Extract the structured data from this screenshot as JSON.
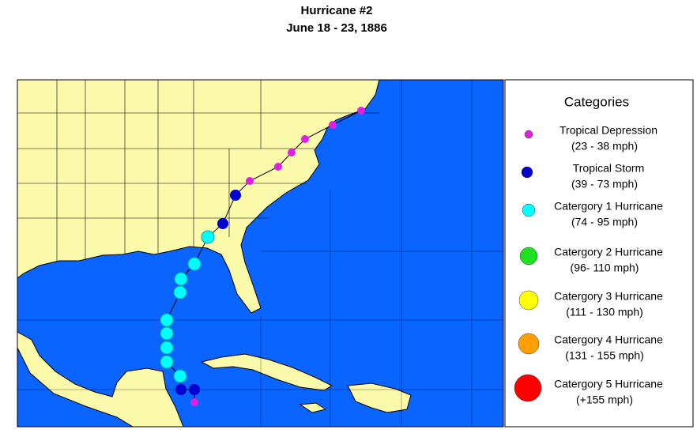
{
  "header": {
    "title": "Hurricane #2",
    "subtitle": "June 18 - 23, 1886"
  },
  "legend": {
    "title": "Categories",
    "items": [
      {
        "name": "Tropical Depression",
        "range": "(23 - 38 mph)",
        "color": "#e020e0"
      },
      {
        "name": "Tropical Storm",
        "range": "(39 - 73 mph)",
        "color": "#0000d0"
      },
      {
        "name": "Catergory 1 Hurricane",
        "range": "(74 - 95 mph)",
        "color": "#00ffff"
      },
      {
        "name": "Catergory 2 Hurricane",
        "range": "(96- 110 mph)",
        "color": "#20e020"
      },
      {
        "name": "Catergory 3 Hurricane",
        "range": "(111 - 130 mph)",
        "color": "#ffff00"
      },
      {
        "name": "Catergory 4 Hurricane",
        "range": "(131 - 155 mph)",
        "color": "#ffa000"
      },
      {
        "name": "Catergory 5 Hurricane",
        "range": "(+155 mph)",
        "color": "#ff0000"
      }
    ]
  }
}
